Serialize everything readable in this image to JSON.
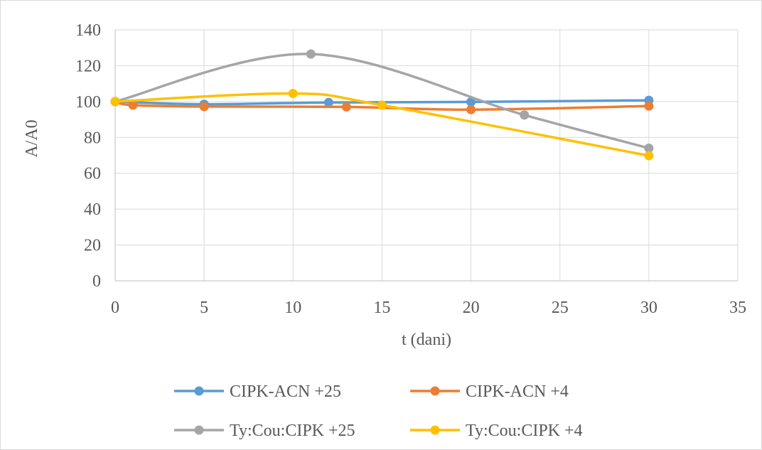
{
  "chart_data": {
    "type": "line",
    "xlabel": "t (dani)",
    "ylabel": "A/A0",
    "xlim": [
      0,
      35
    ],
    "ylim": [
      0,
      140
    ],
    "x_ticks": [
      "0",
      "5",
      "10",
      "15",
      "20",
      "25",
      "30",
      "35"
    ],
    "y_ticks": [
      "0",
      "20",
      "40",
      "60",
      "80",
      "100",
      "120",
      "140"
    ],
    "grid": true,
    "smooth": true,
    "legend_position": "bottom",
    "series": [
      {
        "name": "CIPK-ACN +25",
        "color": "#5B9BD5",
        "points": [
          [
            0,
            100
          ],
          [
            5,
            98.5
          ],
          [
            12,
            99.5
          ],
          [
            20,
            99.8
          ],
          [
            30,
            100.7
          ]
        ]
      },
      {
        "name": "CIPK-ACN +4",
        "color": "#ED7D31",
        "points": [
          [
            0,
            100
          ],
          [
            1,
            98
          ],
          [
            5,
            97.2
          ],
          [
            13,
            97
          ],
          [
            20,
            95.5
          ],
          [
            30,
            97.5
          ]
        ]
      },
      {
        "name": "Ty:Cou:CIPK +25",
        "color": "#A5A5A5",
        "points": [
          [
            0,
            100
          ],
          [
            11,
            126.5
          ],
          [
            23,
            92.5
          ],
          [
            30,
            74
          ]
        ]
      },
      {
        "name": "Ty:Cou:CIPK +4",
        "color": "#FFC000",
        "points": [
          [
            0,
            100
          ],
          [
            10,
            104.5
          ],
          [
            15,
            98
          ],
          [
            30,
            69.8
          ]
        ]
      }
    ]
  }
}
